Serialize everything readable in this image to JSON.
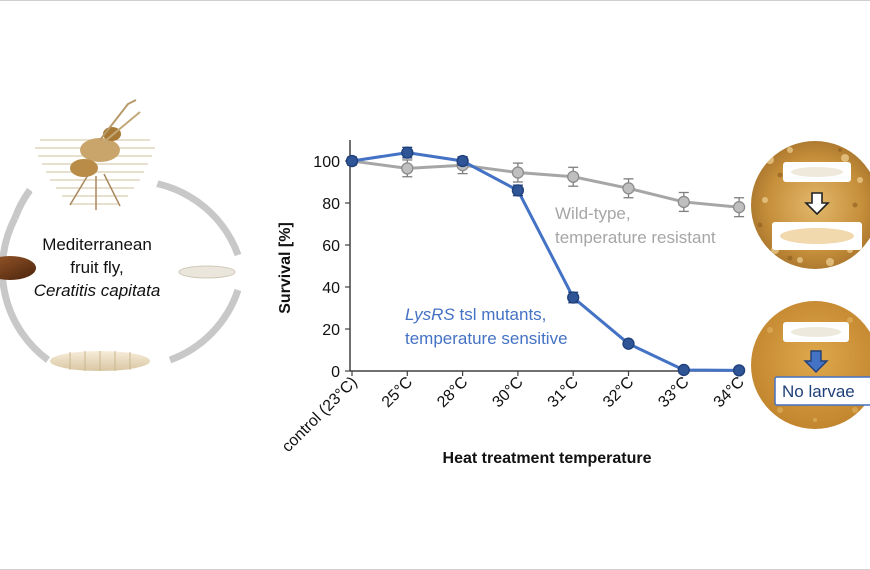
{
  "lifecycle": {
    "species_common": "Mediterranean",
    "species_common2": "fruit fly,",
    "species_latin": "Ceratitis capitata"
  },
  "chart_data": {
    "type": "line",
    "categories": [
      "control (23°C)",
      "25°C",
      "28°C",
      "30°C",
      "31°C",
      "32°C",
      "33°C",
      "34°C"
    ],
    "ylabel": "Survival [%]",
    "xlabel": "Heat treatment temperature",
    "ylim": [
      0,
      110
    ],
    "yticks": [
      0,
      20,
      40,
      60,
      80,
      100
    ],
    "grid": false,
    "series": [
      {
        "name_line1": "Wild-type,",
        "name_line2": "temperature resistant",
        "color": "#a6a6a6",
        "values": [
          100,
          96.5,
          98,
          94.5,
          92.5,
          87,
          80.5,
          78
        ],
        "errors": [
          2,
          4,
          4,
          4.5,
          4.5,
          4.5,
          4.5,
          4.5
        ]
      },
      {
        "name_italic": "LysRS",
        "name_rest": " tsl mutants,",
        "name_line2": "temperature sensitive",
        "color": "#4472c4",
        "values": [
          100,
          104,
          100,
          86,
          35,
          13,
          0.5,
          0.3
        ],
        "errors": [
          1.5,
          2.5,
          2,
          2.5,
          2.5,
          1,
          0.5,
          0.3
        ]
      }
    ]
  },
  "panels": {
    "result_text": "No larvae"
  },
  "colors": {
    "axis": "#404040",
    "wildtype": "#a6a6a6",
    "mutant": "#4472c4",
    "mutant_fill": "#2f5597",
    "arrow_blue": "#4472c4",
    "cycle": "#c8c8c8",
    "food_wt": "#c9913a",
    "food_mut": "#d49a3c"
  }
}
